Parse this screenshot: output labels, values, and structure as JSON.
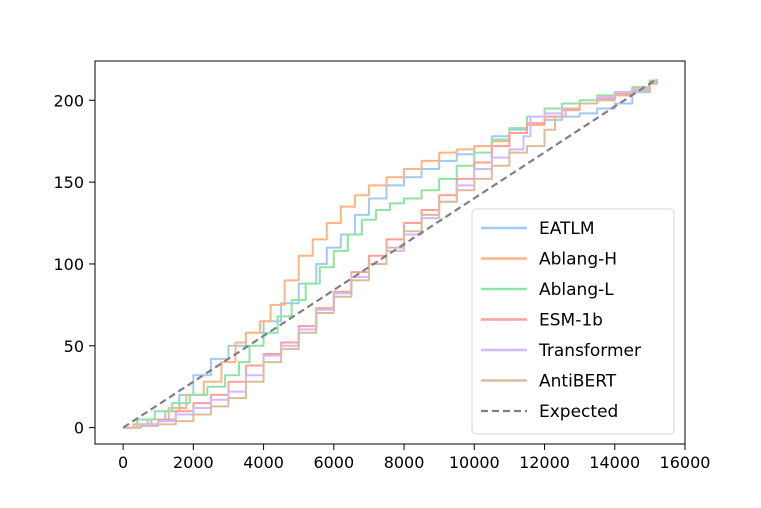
{
  "chart_data": {
    "type": "line",
    "title": "",
    "xlabel": "",
    "ylabel": "",
    "xlim": [
      -800,
      16000
    ],
    "ylim": [
      -10,
      224
    ],
    "x_ticks": [
      "0",
      "2000",
      "4000",
      "6000",
      "8000",
      "10000",
      "12000",
      "14000",
      "16000"
    ],
    "y_ticks": [
      "0",
      "50",
      "100",
      "150",
      "200"
    ],
    "grid": false,
    "legend_position": "lower-right",
    "series": [
      {
        "name": "EATLM",
        "color": "#a1c9f4",
        "style": "solid",
        "points": [
          [
            0,
            0
          ],
          [
            300,
            2
          ],
          [
            700,
            5
          ],
          [
            1200,
            10
          ],
          [
            1600,
            20
          ],
          [
            2000,
            32
          ],
          [
            2500,
            42
          ],
          [
            3000,
            50
          ],
          [
            3500,
            58
          ],
          [
            4000,
            65
          ],
          [
            4500,
            76
          ],
          [
            5000,
            88
          ],
          [
            5500,
            100
          ],
          [
            5800,
            110
          ],
          [
            6200,
            118
          ],
          [
            6600,
            130
          ],
          [
            7000,
            140
          ],
          [
            7500,
            148
          ],
          [
            8000,
            153
          ],
          [
            8500,
            158
          ],
          [
            9000,
            163
          ],
          [
            9500,
            167
          ],
          [
            10000,
            172
          ],
          [
            10500,
            178
          ],
          [
            11000,
            182
          ],
          [
            11500,
            185
          ],
          [
            12000,
            188
          ],
          [
            12500,
            190
          ],
          [
            13000,
            192
          ],
          [
            13500,
            195
          ],
          [
            14000,
            198
          ],
          [
            14500,
            205
          ],
          [
            15000,
            212
          ],
          [
            15200,
            213
          ]
        ]
      },
      {
        "name": "Ablang-H",
        "color": "#ffb482",
        "style": "solid",
        "points": [
          [
            0,
            0
          ],
          [
            300,
            2
          ],
          [
            800,
            5
          ],
          [
            1300,
            12
          ],
          [
            1800,
            20
          ],
          [
            2300,
            28
          ],
          [
            2800,
            40
          ],
          [
            3200,
            52
          ],
          [
            3500,
            58
          ],
          [
            3900,
            65
          ],
          [
            4200,
            75
          ],
          [
            4600,
            90
          ],
          [
            5000,
            105
          ],
          [
            5400,
            115
          ],
          [
            5800,
            125
          ],
          [
            6200,
            135
          ],
          [
            6600,
            142
          ],
          [
            7000,
            148
          ],
          [
            7500,
            153
          ],
          [
            8000,
            158
          ],
          [
            8500,
            163
          ],
          [
            9000,
            168
          ],
          [
            9500,
            170
          ],
          [
            10000,
            172
          ],
          [
            10500,
            175
          ],
          [
            11000,
            180
          ],
          [
            11500,
            185
          ],
          [
            12000,
            190
          ],
          [
            12500,
            195
          ],
          [
            13000,
            198
          ],
          [
            13500,
            200
          ],
          [
            14000,
            203
          ],
          [
            14500,
            208
          ],
          [
            15000,
            212
          ],
          [
            15200,
            213
          ]
        ]
      },
      {
        "name": "Ablang-L",
        "color": "#8de5a1",
        "style": "solid",
        "points": [
          [
            0,
            0
          ],
          [
            400,
            5
          ],
          [
            900,
            10
          ],
          [
            1400,
            15
          ],
          [
            1900,
            20
          ],
          [
            2400,
            25
          ],
          [
            2900,
            32
          ],
          [
            3300,
            40
          ],
          [
            3600,
            50
          ],
          [
            4000,
            58
          ],
          [
            4400,
            68
          ],
          [
            4800,
            78
          ],
          [
            5200,
            88
          ],
          [
            5600,
            98
          ],
          [
            6000,
            108
          ],
          [
            6400,
            118
          ],
          [
            6800,
            127
          ],
          [
            7200,
            133
          ],
          [
            7600,
            137
          ],
          [
            8000,
            140
          ],
          [
            8500,
            145
          ],
          [
            9000,
            152
          ],
          [
            9500,
            160
          ],
          [
            10000,
            168
          ],
          [
            10500,
            176
          ],
          [
            11000,
            183
          ],
          [
            11500,
            190
          ],
          [
            12000,
            195
          ],
          [
            12500,
            198
          ],
          [
            13000,
            200
          ],
          [
            13500,
            203
          ],
          [
            14000,
            205
          ],
          [
            14500,
            208
          ],
          [
            15000,
            212
          ],
          [
            15200,
            213
          ]
        ]
      },
      {
        "name": "ESM-1b",
        "color": "#ff9f9b",
        "style": "solid",
        "points": [
          [
            0,
            0
          ],
          [
            500,
            2
          ],
          [
            1000,
            5
          ],
          [
            1500,
            10
          ],
          [
            2000,
            15
          ],
          [
            2500,
            20
          ],
          [
            3000,
            28
          ],
          [
            3500,
            38
          ],
          [
            4000,
            45
          ],
          [
            4500,
            52
          ],
          [
            5000,
            62
          ],
          [
            5500,
            73
          ],
          [
            6000,
            83
          ],
          [
            6500,
            95
          ],
          [
            7000,
            105
          ],
          [
            7500,
            115
          ],
          [
            8000,
            125
          ],
          [
            8500,
            133
          ],
          [
            9000,
            142
          ],
          [
            9500,
            152
          ],
          [
            10000,
            162
          ],
          [
            10500,
            172
          ],
          [
            11000,
            180
          ],
          [
            11500,
            186
          ],
          [
            12000,
            190
          ],
          [
            12500,
            194
          ],
          [
            13000,
            198
          ],
          [
            13500,
            201
          ],
          [
            14000,
            204
          ],
          [
            14500,
            207
          ],
          [
            15000,
            211
          ],
          [
            15200,
            213
          ]
        ]
      },
      {
        "name": "Transformer",
        "color": "#d0bbff",
        "style": "solid",
        "points": [
          [
            0,
            0
          ],
          [
            500,
            2
          ],
          [
            1000,
            4
          ],
          [
            1500,
            8
          ],
          [
            2000,
            12
          ],
          [
            2500,
            17
          ],
          [
            3000,
            22
          ],
          [
            3500,
            32
          ],
          [
            4000,
            44
          ],
          [
            4500,
            50
          ],
          [
            5000,
            60
          ],
          [
            5500,
            72
          ],
          [
            6000,
            82
          ],
          [
            6500,
            92
          ],
          [
            7000,
            100
          ],
          [
            7500,
            108
          ],
          [
            8000,
            118
          ],
          [
            8500,
            128
          ],
          [
            9000,
            138
          ],
          [
            9500,
            148
          ],
          [
            10000,
            158
          ],
          [
            10500,
            165
          ],
          [
            11000,
            170
          ],
          [
            11400,
            178
          ],
          [
            11600,
            190
          ],
          [
            12000,
            192
          ],
          [
            12500,
            195
          ],
          [
            13000,
            198
          ],
          [
            13500,
            202
          ],
          [
            14000,
            205
          ],
          [
            14500,
            207
          ],
          [
            15000,
            211
          ],
          [
            15200,
            213
          ]
        ]
      },
      {
        "name": "AntiBERT",
        "color": "#debb9b",
        "style": "solid",
        "points": [
          [
            0,
            0
          ],
          [
            500,
            1
          ],
          [
            1000,
            2
          ],
          [
            1500,
            4
          ],
          [
            2000,
            8
          ],
          [
            2500,
            13
          ],
          [
            3000,
            18
          ],
          [
            3500,
            28
          ],
          [
            4000,
            40
          ],
          [
            4500,
            48
          ],
          [
            5000,
            58
          ],
          [
            5500,
            70
          ],
          [
            6000,
            80
          ],
          [
            6500,
            90
          ],
          [
            7000,
            100
          ],
          [
            7500,
            110
          ],
          [
            8000,
            120
          ],
          [
            8500,
            130
          ],
          [
            9000,
            138
          ],
          [
            9500,
            145
          ],
          [
            10000,
            152
          ],
          [
            10500,
            160
          ],
          [
            11000,
            168
          ],
          [
            11500,
            172
          ],
          [
            12000,
            182
          ],
          [
            12300,
            190
          ],
          [
            12600,
            195
          ],
          [
            13000,
            198
          ],
          [
            13500,
            200
          ],
          [
            14000,
            203
          ],
          [
            14500,
            206
          ],
          [
            15000,
            210
          ],
          [
            15200,
            213
          ]
        ]
      },
      {
        "name": "Expected",
        "color": "#808080",
        "style": "dashed",
        "points": [
          [
            0,
            0
          ],
          [
            15200,
            213
          ]
        ]
      }
    ]
  }
}
